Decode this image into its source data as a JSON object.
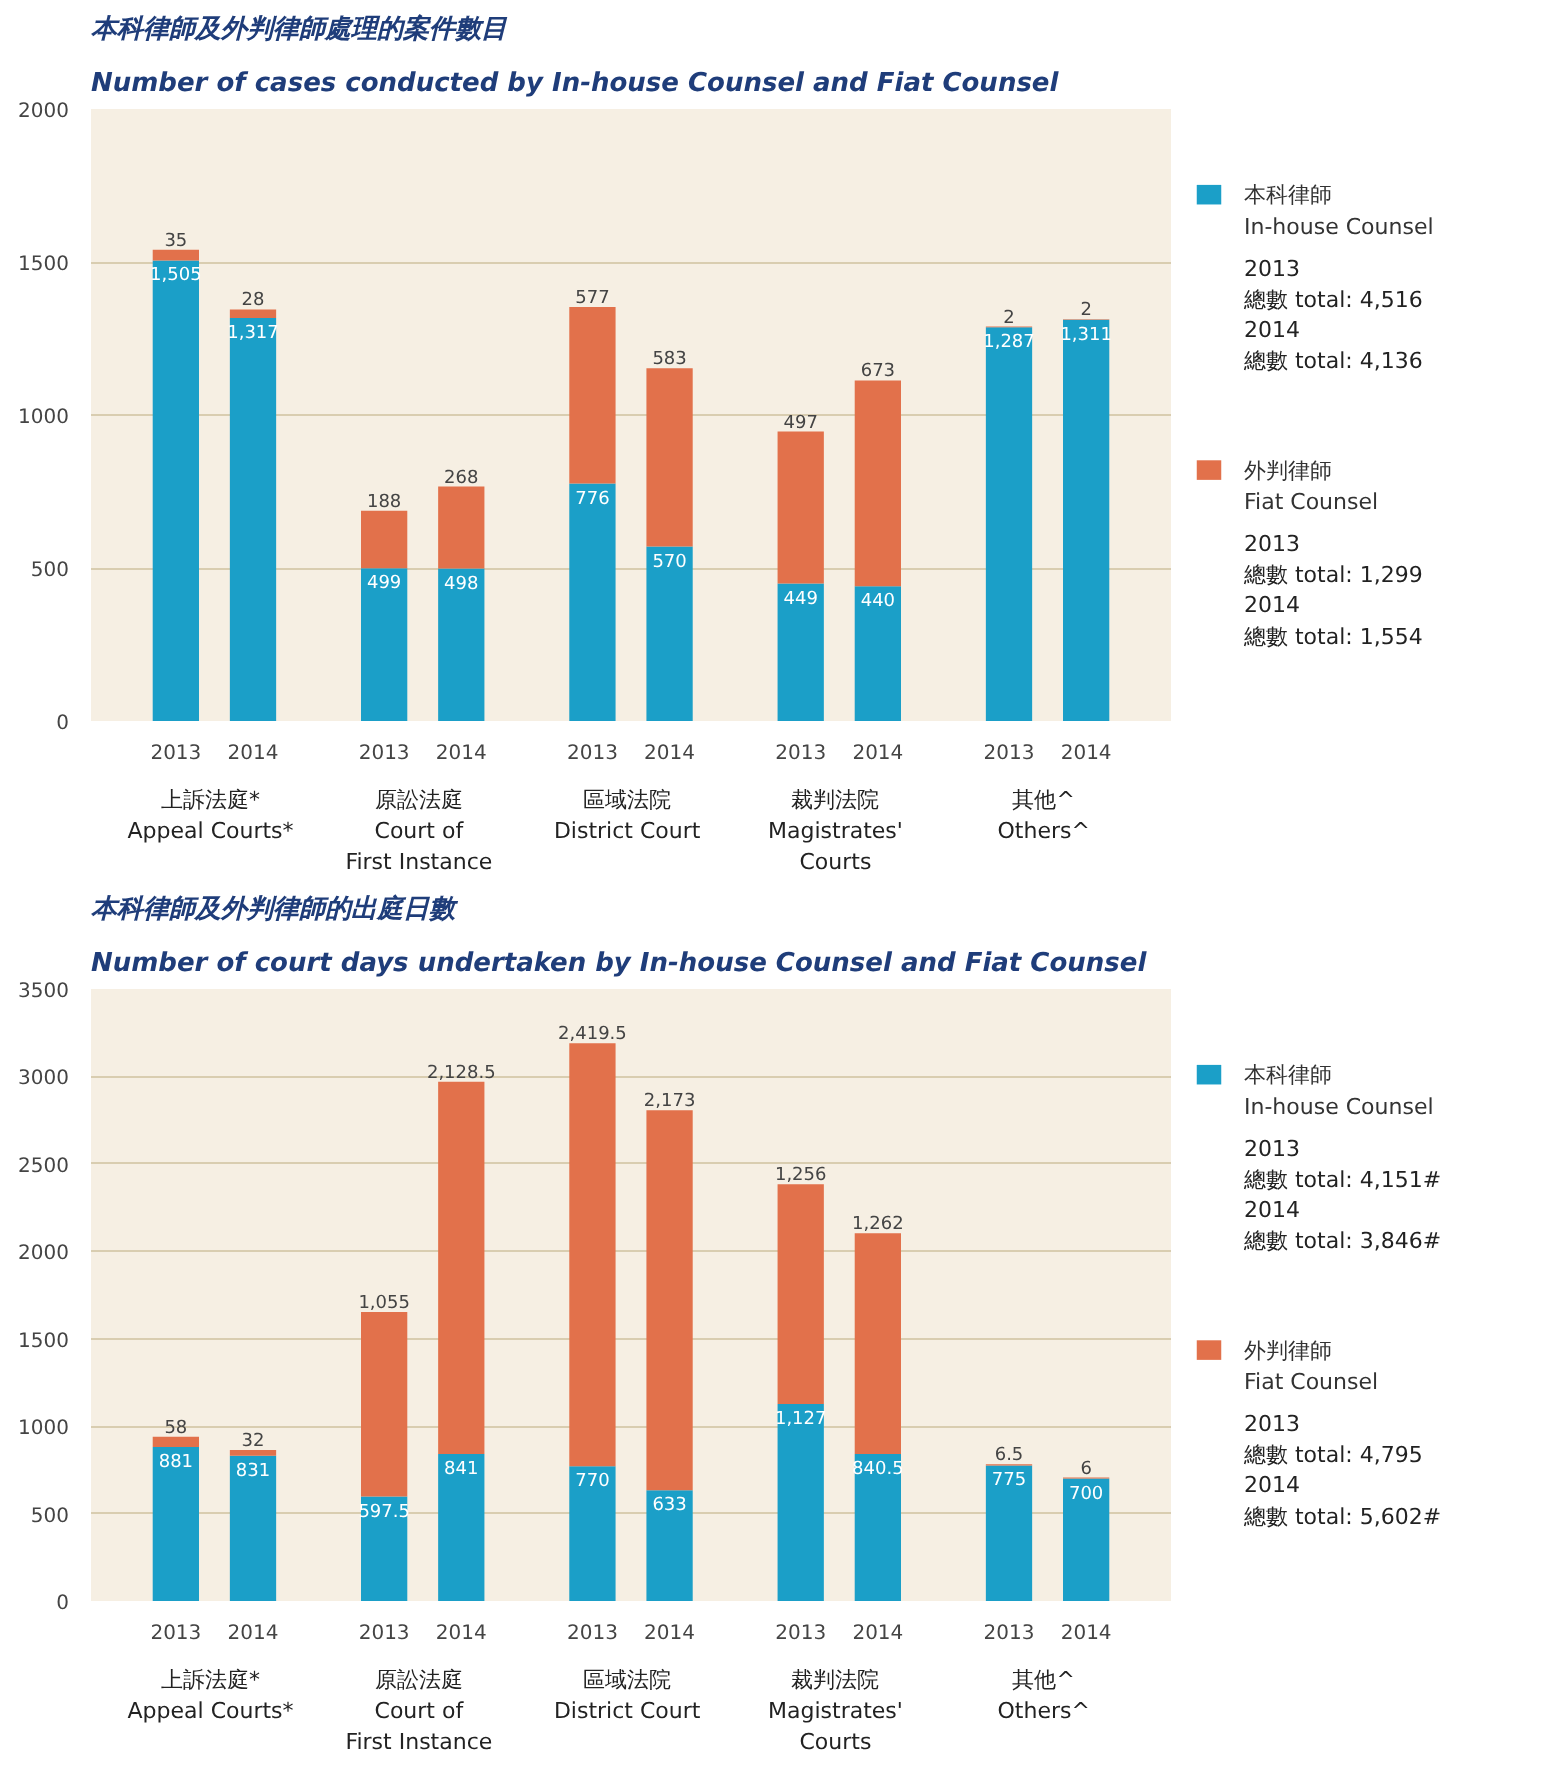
{
  "chart_data": [
    {
      "type": "bar",
      "stacked": true,
      "title": "本科律師及外判律師處理的案件數目",
      "subtitle": "Number of cases conducted by In-house Counsel and Fiat Counsel",
      "categories": [
        "2013",
        "2014",
        "2013",
        "2014",
        "2013",
        "2014",
        "2013",
        "2014",
        "2013",
        "2014"
      ],
      "series": [
        {
          "name": "本科律師\nIn-house Counsel",
          "color": "#1b9fc8",
          "values": [
            1505,
            1317,
            499,
            498,
            776,
            570,
            449,
            440,
            1287,
            1311
          ],
          "value_labels": [
            "1,505",
            "1,317",
            "499",
            "498",
            "776",
            "570",
            "449",
            "440",
            "1,287",
            "1,311"
          ]
        },
        {
          "name": "外判律師\nFiat Counsel",
          "color": "#e2714b",
          "values": [
            35,
            28,
            188,
            268,
            577,
            583,
            497,
            673,
            2,
            2
          ],
          "value_labels": [
            "35",
            "28",
            "188",
            "268",
            "577",
            "583",
            "497",
            "673",
            "2",
            "2"
          ]
        }
      ],
      "ylim": [
        0,
        2000
      ],
      "yticks": [
        0,
        500,
        1000,
        1500,
        2000
      ],
      "grid": "y",
      "legend": "right",
      "annotations": [
        "上訴法庭*\nAppeal Courts*",
        "原訟法庭\nCourt of\nFirst Instance",
        "區域法院\nDistrict Court",
        "裁判法院\nMagistrates'\nCourts",
        "其他^\nOthers^",
        "2013\n總數 total: 4,516",
        "2014\n總數 total: 4,136",
        "2013\n總數 total: 1,299",
        "2014\n總數 total: 1,554"
      ]
    },
    {
      "type": "bar",
      "stacked": true,
      "title": "本科律師及外判律師的出庭日數",
      "subtitle": "Number of court days undertaken by In-house Counsel and Fiat Counsel",
      "categories": [
        "2013",
        "2014",
        "2013",
        "2014",
        "2013",
        "2014",
        "2013",
        "2014",
        "2013",
        "2014"
      ],
      "series": [
        {
          "name": "本科律師\nIn-house Counsel",
          "color": "#1b9fc8",
          "values": [
            881,
            831,
            597.5,
            841,
            770,
            633,
            1127,
            840.5,
            775,
            700
          ],
          "value_labels": [
            "881",
            "831",
            "597.5",
            "841",
            "770",
            "633",
            "1,127",
            "840.5",
            "775",
            "700"
          ]
        },
        {
          "name": "外判律師\nFiat Counsel",
          "color": "#e2714b",
          "values": [
            58,
            32,
            1055,
            2128.5,
            2419.5,
            2173,
            1256,
            1262,
            6.5,
            6
          ],
          "value_labels": [
            "58",
            "32",
            "1,055",
            "2,128.5",
            "2,419.5",
            "2,173",
            "1,256",
            "1,262",
            "6.5",
            "6"
          ]
        }
      ],
      "ylim": [
        0,
        3500
      ],
      "yticks": [
        0,
        500,
        1000,
        1500,
        2000,
        2500,
        3000,
        3500
      ],
      "grid": "y",
      "legend": "right",
      "annotations": [
        "上訴法庭*\nAppeal Courts*",
        "原訟法庭\nCourt of\nFirst Instance",
        "區域法院\nDistrict Court",
        "裁判法院\nMagistrates'\nCourts",
        "其他^\nOthers^",
        "2013\n總數 total: 4,151#",
        "2014\n總數 total: 3,846#",
        "2013\n總數 total: 4,795",
        "2014\n總數 total: 5,602#"
      ]
    }
  ]
}
